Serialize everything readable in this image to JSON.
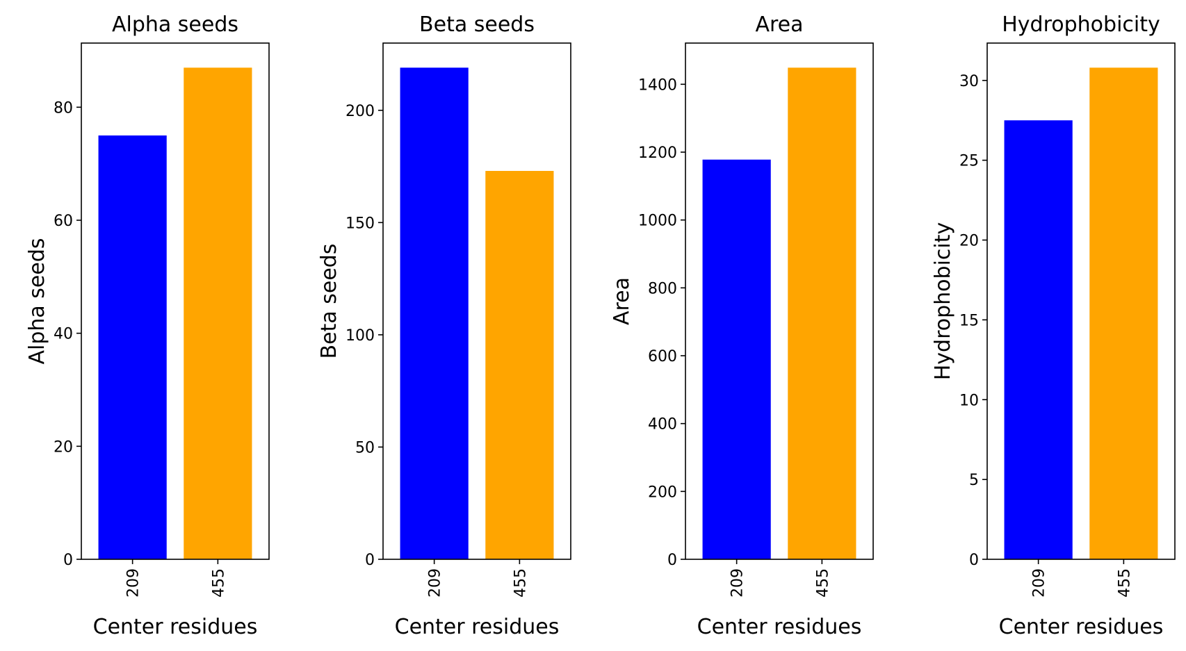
{
  "chart_data": [
    {
      "type": "bar",
      "title": "Alpha seeds",
      "xlabel": "Center residues",
      "ylabel": "Alpha seeds",
      "categories": [
        "209",
        "455"
      ],
      "values": [
        75,
        87
      ],
      "colors": [
        "#0000ff",
        "#ffa500"
      ],
      "ylim": [
        0,
        91.35
      ],
      "yticks": [
        0,
        20,
        40,
        60,
        80
      ],
      "grid": false,
      "x_tick_rotation": "vertical"
    },
    {
      "type": "bar",
      "title": "Beta seeds",
      "xlabel": "Center residues",
      "ylabel": "Beta seeds",
      "categories": [
        "209",
        "455"
      ],
      "values": [
        219,
        173
      ],
      "colors": [
        "#0000ff",
        "#ffa500"
      ],
      "ylim": [
        0,
        229.95
      ],
      "yticks": [
        0,
        50,
        100,
        150,
        200
      ],
      "grid": false,
      "x_tick_rotation": "vertical"
    },
    {
      "type": "bar",
      "title": "Area",
      "xlabel": "Center residues",
      "ylabel": "Area",
      "categories": [
        "209",
        "455"
      ],
      "values": [
        1178,
        1449
      ],
      "colors": [
        "#0000ff",
        "#ffa500"
      ],
      "ylim": [
        0,
        1521.45
      ],
      "yticks": [
        0,
        200,
        400,
        600,
        800,
        1000,
        1200,
        1400
      ],
      "grid": false,
      "x_tick_rotation": "vertical"
    },
    {
      "type": "bar",
      "title": "Hydrophobicity",
      "xlabel": "Center residues",
      "ylabel": "Hydrophobicity",
      "categories": [
        "209",
        "455"
      ],
      "values": [
        27.5,
        30.8
      ],
      "colors": [
        "#0000ff",
        "#ffa500"
      ],
      "ylim": [
        0,
        32.34
      ],
      "yticks": [
        0,
        5,
        10,
        15,
        20,
        25,
        30
      ],
      "grid": false,
      "x_tick_rotation": "vertical"
    }
  ]
}
